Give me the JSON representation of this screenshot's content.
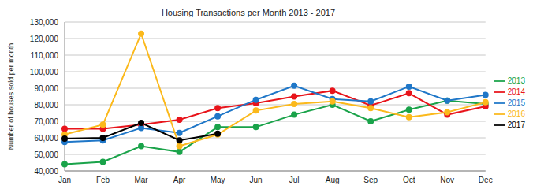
{
  "chart_data": {
    "type": "line",
    "title": "Housing Transactions per Month 2013 - 2017",
    "y_label": "Number of houses sold per month",
    "categories": [
      "Jan",
      "Feb",
      "Mar",
      "Apr",
      "May",
      "Jun",
      "Jul",
      "Aug",
      "Sep",
      "Oct",
      "Nov",
      "Dec"
    ],
    "series": [
      {
        "name": "2013",
        "color": "#1aa34a",
        "values": [
          44000,
          45500,
          55000,
          51500,
          66500,
          66500,
          74000,
          80000,
          70000,
          77000,
          82500,
          80500
        ]
      },
      {
        "name": "2014",
        "color": "#e8141b",
        "values": [
          65500,
          65500,
          68000,
          71000,
          78000,
          81000,
          85000,
          88500,
          79500,
          87000,
          74000,
          79000
        ]
      },
      {
        "name": "2015",
        "color": "#1f77c8",
        "values": [
          57500,
          58500,
          66000,
          63000,
          73000,
          83000,
          91500,
          83500,
          82000,
          91000,
          82500,
          86000
        ]
      },
      {
        "name": "2016",
        "color": "#fbb91c",
        "values": [
          62000,
          68000,
          123000,
          55000,
          62000,
          76500,
          80500,
          82000,
          78000,
          72500,
          75500,
          81500
        ]
      },
      {
        "name": "2017",
        "color": "#000000",
        "values": [
          59500,
          60000,
          69000,
          58500,
          62500,
          null,
          null,
          null,
          null,
          null,
          null,
          null
        ]
      }
    ],
    "ylim": [
      40000,
      130000
    ],
    "yticks": [
      {
        "value": 40000,
        "label": "40,000"
      },
      {
        "value": 50000,
        "label": "50,000"
      },
      {
        "value": 60000,
        "label": "60,000"
      },
      {
        "value": 70000,
        "label": "70,000"
      },
      {
        "value": 80000,
        "label": "80,000"
      },
      {
        "value": 90000,
        "label": "90,000"
      },
      {
        "value": 100000,
        "label": "100,000"
      },
      {
        "value": 110000,
        "label": "110,000"
      },
      {
        "value": 120000,
        "label": "120,000"
      },
      {
        "value": 130000,
        "label": "130,000"
      }
    ],
    "grid": true,
    "legend": "right",
    "marker": "circle"
  }
}
